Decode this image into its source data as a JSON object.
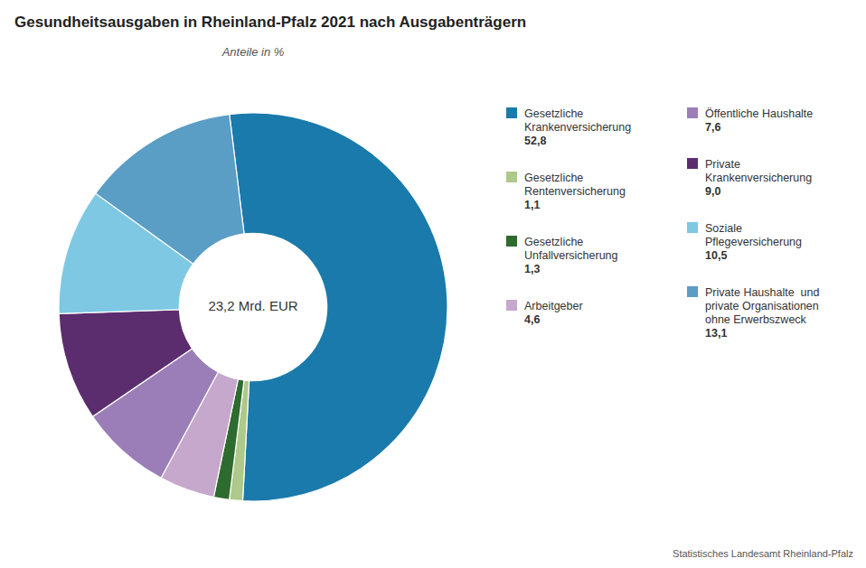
{
  "chart_data": {
    "type": "donut",
    "title": "Gesundheitsausgaben in Rheinland-Pfalz 2021 nach Ausgabenträgern",
    "subtitle": "Anteile in %",
    "categories": [
      "Gesetzliche\nKrankenversicherung",
      "Gesetzliche\nRentenversicherung",
      "Gesetzliche\nUnfallversicherung",
      "Arbeitgeber",
      "Öffentliche Haushalte",
      "Private\nKrankenversicherung",
      "Soziale\nPflegeversicherung",
      "Private Haushalte  und\nprivate Organisationen\nohne Erwerbszweck"
    ],
    "values": [
      52.8,
      1.1,
      1.3,
      4.6,
      7.6,
      9.0,
      10.5,
      13.1
    ],
    "value_labels": [
      "52,8",
      "1,1",
      "1,3",
      "4,6",
      "7,6",
      "9,0",
      "10,5",
      "13,1"
    ],
    "colors": [
      "#1a7aab",
      "#aec98a",
      "#2e6b2e",
      "#c5a8cc",
      "#9b7eb8",
      "#5c2d6e",
      "#7ec8e3",
      "#5a9dc5"
    ],
    "data_labels": true,
    "legend": "right",
    "annotations": [
      "23,2 Mrd. EUR",
      "Statistisches Landesamt Rheinland-Pfalz"
    ]
  }
}
